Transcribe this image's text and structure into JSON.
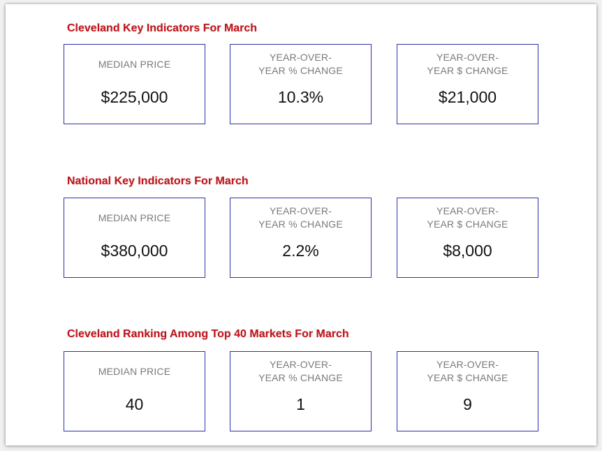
{
  "sections": [
    {
      "title": "Cleveland Key Indicators For March",
      "cards": [
        {
          "label_lines": [
            "MEDIAN PRICE"
          ],
          "value": "$225,000"
        },
        {
          "label_lines": [
            "YEAR-OVER-",
            "YEAR % CHANGE"
          ],
          "value": "10.3%"
        },
        {
          "label_lines": [
            "YEAR-OVER-",
            "YEAR $ CHANGE"
          ],
          "value": "$21,000"
        }
      ]
    },
    {
      "title": "National Key Indicators For March",
      "cards": [
        {
          "label_lines": [
            "MEDIAN PRICE"
          ],
          "value": "$380,000"
        },
        {
          "label_lines": [
            "YEAR-OVER-",
            "YEAR % CHANGE"
          ],
          "value": "2.2%"
        },
        {
          "label_lines": [
            "YEAR-OVER-",
            "YEAR $ CHANGE"
          ],
          "value": "$8,000"
        }
      ]
    },
    {
      "title": "Cleveland Ranking Among Top 40 Markets For March",
      "cards": [
        {
          "label_lines": [
            "MEDIAN PRICE"
          ],
          "value": "40"
        },
        {
          "label_lines": [
            "YEAR-OVER-",
            "YEAR % CHANGE"
          ],
          "value": "1"
        },
        {
          "label_lines": [
            "YEAR-OVER-",
            "YEAR $ CHANGE"
          ],
          "value": "9"
        }
      ]
    }
  ],
  "colors": {
    "title": "#c0151b",
    "card_border": "#2e32a8",
    "label": "#7a7a7a",
    "value": "#111111"
  }
}
